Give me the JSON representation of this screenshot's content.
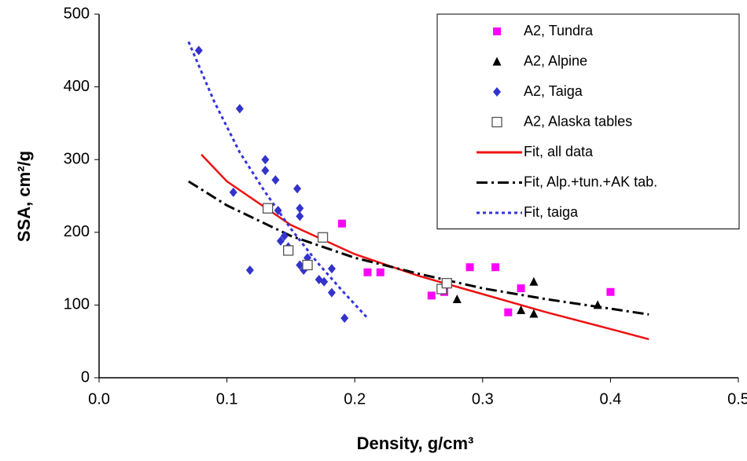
{
  "chart_data": {
    "type": "scatter",
    "x_label": "Density, g/cm³",
    "y_label": "SSA, cm²/g",
    "xlim": [
      0,
      0.5
    ],
    "ylim": [
      0,
      500
    ],
    "xticks": [
      {
        "value": 0,
        "label": "0.0"
      },
      0.1,
      0.2,
      0.3,
      0.4,
      0.5
    ],
    "yticks": [
      0,
      100,
      200,
      300,
      400,
      500
    ],
    "grid": false,
    "legend": "upper right",
    "series": [
      {
        "name": "A2, Tundra",
        "color": "#ff00ff",
        "marker": "square",
        "x": [
          0.19,
          0.21,
          0.22,
          0.26,
          0.27,
          0.29,
          0.31,
          0.32,
          0.33,
          0.4
        ],
        "values": [
          212,
          145,
          145,
          113,
          118,
          152,
          152,
          90,
          123,
          118
        ]
      },
      {
        "name": "A2, Alpine",
        "color": "#000000",
        "marker": "triangle",
        "x": [
          0.28,
          0.33,
          0.34,
          0.34,
          0.39
        ],
        "values": [
          108,
          93,
          132,
          88,
          100
        ]
      },
      {
        "name": "A2, Taiga",
        "color": "#3333cc",
        "marker": "diamond",
        "x": [
          0.078,
          0.105,
          0.11,
          0.118,
          0.13,
          0.13,
          0.138,
          0.14,
          0.142,
          0.145,
          0.148,
          0.155,
          0.157,
          0.157,
          0.157,
          0.16,
          0.163,
          0.172,
          0.176,
          0.182,
          0.182,
          0.192
        ],
        "values": [
          450,
          255,
          370,
          148,
          300,
          285,
          272,
          230,
          188,
          195,
          180,
          260,
          233,
          222,
          155,
          148,
          165,
          135,
          132,
          150,
          117,
          82
        ]
      },
      {
        "name": "A2, Alaska tables",
        "color": "#555555",
        "marker": "open-square",
        "x": [
          0.132,
          0.148,
          0.163,
          0.175,
          0.268,
          0.272
        ],
        "values": [
          233,
          175,
          155,
          193,
          122,
          130
        ]
      },
      {
        "name": "Fit, all data",
        "color": "#ee1111",
        "marker": "line",
        "dash": "solid",
        "x": [
          0.08,
          0.1,
          0.15,
          0.2,
          0.25,
          0.3,
          0.35,
          0.4,
          0.43
        ],
        "values": [
          307,
          270,
          210,
          170,
          140,
          115,
          90,
          67,
          53
        ]
      },
      {
        "name": "Fit, Alp.+tun.+AK tab.",
        "color": "#000000",
        "marker": "line",
        "dash": "dashdot",
        "x": [
          0.07,
          0.1,
          0.15,
          0.2,
          0.25,
          0.3,
          0.35,
          0.4,
          0.43
        ],
        "values": [
          270,
          237,
          195,
          165,
          143,
          123,
          108,
          95,
          87
        ]
      },
      {
        "name": "Fit, taiga",
        "color": "#3333dd",
        "marker": "line",
        "dash": "dotted",
        "x": [
          0.07,
          0.09,
          0.11,
          0.13,
          0.15,
          0.17,
          0.19,
          0.21
        ],
        "values": [
          462,
          380,
          310,
          255,
          205,
          160,
          120,
          82
        ]
      }
    ]
  }
}
